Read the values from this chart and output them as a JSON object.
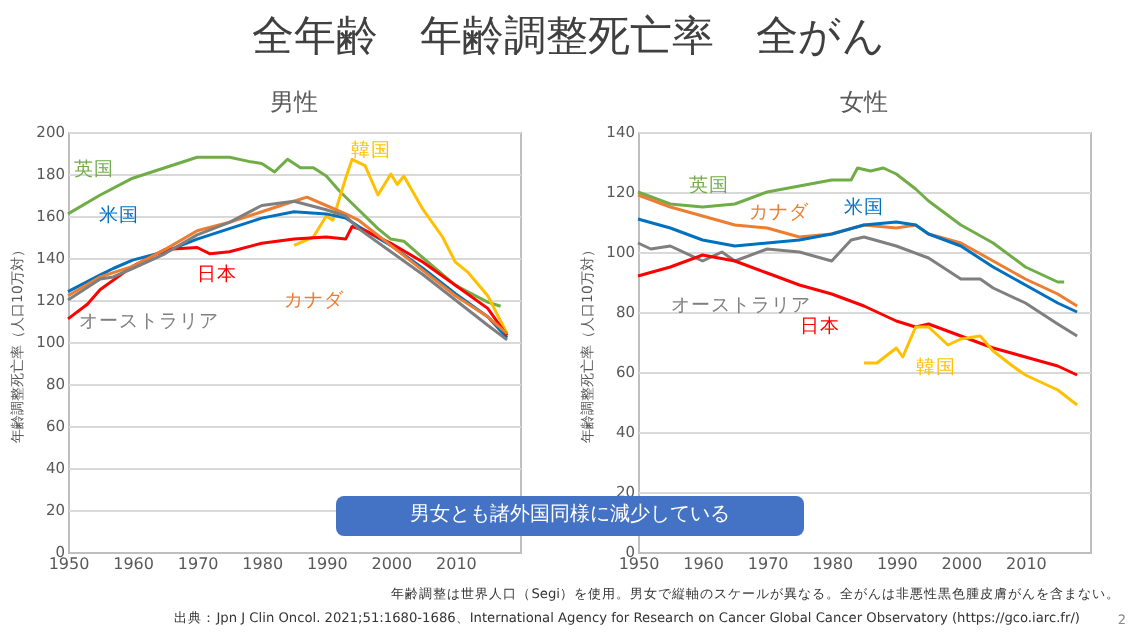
{
  "chart_data": [
    {
      "type": "other",
      "title": "全年齢　年齢調整死亡率　全がん",
      "annotations": [
        "男女とも諸外国同様に減少している",
        "年齢調整は世界人口（Segi）を使用。男女で縦軸のスケールが異なる。全がんは非悪性黒色腫皮膚がんを含まない。",
        "出典：Jpn J Clin Oncol. 2021;51:1680-1686、International Agency for Research on Cancer Global Cancer Observatory (https://gco.iarc.fr/)",
        "2"
      ]
    },
    {
      "type": "line",
      "title": "男性",
      "ylabel": "年齢調整死亡率（人口10万対）",
      "xlim": [
        1950,
        2020
      ],
      "xticks": [
        1950,
        1960,
        1970,
        1980,
        1990,
        2000,
        2010
      ],
      "ylim": [
        0,
        200
      ],
      "yticks": [
        0,
        20,
        40,
        60,
        80,
        100,
        120,
        140,
        160,
        180,
        200
      ],
      "grid": "y",
      "marker": "none",
      "line_style": "solid",
      "series": [
        {
          "name": "英国",
          "color": "#70ad47",
          "x": [
            1950,
            1955,
            1960,
            1965,
            1970,
            1975,
            1978,
            1980,
            1982,
            1984,
            1986,
            1988,
            1990,
            1992,
            1995,
            1998,
            2000,
            2002,
            2005,
            2010,
            2015,
            2017
          ],
          "values": [
            161,
            170,
            178,
            183,
            188,
            188,
            186,
            185,
            181,
            187,
            183,
            183,
            179,
            172,
            163,
            154,
            149,
            148,
            140,
            127,
            119,
            117
          ]
        },
        {
          "name": "韓国",
          "color": "#ffc000",
          "x": [
            1985,
            1988,
            1990,
            1991,
            1993,
            1994,
            1996,
            1998,
            2000,
            2001,
            2002,
            2005,
            2008,
            2010,
            2012,
            2015,
            2018
          ],
          "values": [
            146,
            150,
            160,
            158,
            178,
            187,
            184,
            170,
            180,
            175,
            179,
            163,
            150,
            138,
            133,
            122,
            104
          ]
        },
        {
          "name": "米国",
          "color": "#0070c0",
          "x": [
            1950,
            1955,
            1957,
            1960,
            1965,
            1970,
            1975,
            1980,
            1985,
            1990,
            1993,
            1995,
            2000,
            2005,
            2010,
            2015,
            2018
          ],
          "values": [
            124,
            132,
            135,
            139,
            143,
            149,
            154,
            159,
            162,
            161,
            159,
            155,
            146,
            135,
            123,
            112,
            102
          ]
        },
        {
          "name": "日本",
          "color": "#ff0000",
          "x": [
            1950,
            1953,
            1955,
            1960,
            1965,
            1970,
            1972,
            1975,
            1980,
            1985,
            1990,
            1993,
            1994,
            1996,
            2000,
            2005,
            2010,
            2015,
            2018
          ],
          "values": [
            111,
            118,
            125,
            136,
            144,
            145,
            142,
            143,
            147,
            149,
            150,
            149,
            155,
            153,
            147,
            138,
            127,
            116,
            103
          ]
        },
        {
          "name": "カナダ",
          "color": "#ed7d31",
          "x": [
            1950,
            1955,
            1960,
            1965,
            1970,
            1975,
            1980,
            1985,
            1987,
            1990,
            1993,
            1995,
            2000,
            2005,
            2010,
            2015,
            2018
          ],
          "values": [
            122,
            131,
            136,
            144,
            153,
            157,
            162,
            167,
            169,
            165,
            161,
            158,
            146,
            134,
            122,
            112,
            104
          ]
        },
        {
          "name": "オーストラリア",
          "color": "#7f7f7f",
          "x": [
            1950,
            1955,
            1957,
            1960,
            1965,
            1970,
            1975,
            1980,
            1985,
            1990,
            1993,
            1995,
            2000,
            2005,
            2010,
            2015,
            2018
          ],
          "values": [
            120,
            130,
            131,
            135,
            142,
            151,
            157,
            165,
            167,
            163,
            160,
            154,
            143,
            132,
            120,
            108,
            101
          ]
        }
      ]
    },
    {
      "type": "line",
      "title": "女性",
      "ylabel": "年齢調整死亡率（人口10万対）",
      "xlim": [
        1950,
        2020
      ],
      "xticks": [
        1950,
        1960,
        1970,
        1980,
        1990,
        2000,
        2010
      ],
      "ylim": [
        0,
        140
      ],
      "yticks": [
        0,
        20,
        40,
        60,
        80,
        100,
        120,
        140
      ],
      "grid": "y",
      "marker": "none",
      "line_style": "solid",
      "series": [
        {
          "name": "英国",
          "color": "#70ad47",
          "x": [
            1950,
            1955,
            1960,
            1965,
            1970,
            1975,
            1980,
            1983,
            1984,
            1986,
            1988,
            1990,
            1993,
            1995,
            2000,
            2005,
            2010,
            2015,
            2016
          ],
          "values": [
            120,
            116,
            115,
            116,
            120,
            122,
            124,
            124,
            128,
            127,
            128,
            126,
            121,
            117,
            109,
            103,
            95,
            90,
            90
          ]
        },
        {
          "name": "カナダ",
          "color": "#ed7d31",
          "x": [
            1950,
            1955,
            1960,
            1965,
            1970,
            1975,
            1980,
            1985,
            1990,
            1993,
            1995,
            2000,
            2005,
            2010,
            2015,
            2018
          ],
          "values": [
            119,
            115,
            112,
            109,
            108,
            105,
            106,
            109,
            108,
            109,
            106,
            103,
            97,
            91,
            86,
            82
          ]
        },
        {
          "name": "米国",
          "color": "#0070c0",
          "x": [
            1950,
            1955,
            1960,
            1965,
            1970,
            1975,
            1980,
            1985,
            1990,
            1993,
            1995,
            2000,
            2005,
            2010,
            2015,
            2018
          ],
          "values": [
            111,
            108,
            104,
            102,
            103,
            104,
            106,
            109,
            110,
            109,
            106,
            102,
            95,
            89,
            83,
            80
          ]
        },
        {
          "name": "オーストラリア",
          "color": "#7f7f7f",
          "x": [
            1950,
            1952,
            1955,
            1960,
            1963,
            1965,
            1970,
            1975,
            1980,
            1983,
            1985,
            1990,
            1995,
            2000,
            2003,
            2005,
            2010,
            2015,
            2018
          ],
          "values": [
            103,
            101,
            102,
            97,
            100,
            97,
            101,
            100,
            97,
            104,
            105,
            102,
            98,
            91,
            91,
            88,
            83,
            76,
            72
          ]
        },
        {
          "name": "日本",
          "color": "#ff0000",
          "x": [
            1950,
            1955,
            1960,
            1965,
            1970,
            1975,
            1980,
            1985,
            1990,
            1993,
            1995,
            2000,
            2005,
            2010,
            2015,
            2018
          ],
          "values": [
            92,
            95,
            99,
            97,
            93,
            89,
            86,
            82,
            77,
            75,
            76,
            72,
            68,
            65,
            62,
            59
          ]
        },
        {
          "name": "韓国",
          "color": "#ffc000",
          "x": [
            1985,
            1987,
            1990,
            1991,
            1993,
            1995,
            1998,
            2000,
            2003,
            2005,
            2008,
            2010,
            2015,
            2018
          ],
          "values": [
            63,
            63,
            68,
            65,
            75,
            75,
            69,
            71,
            72,
            67,
            62,
            59,
            54,
            49
          ]
        }
      ]
    }
  ]
}
